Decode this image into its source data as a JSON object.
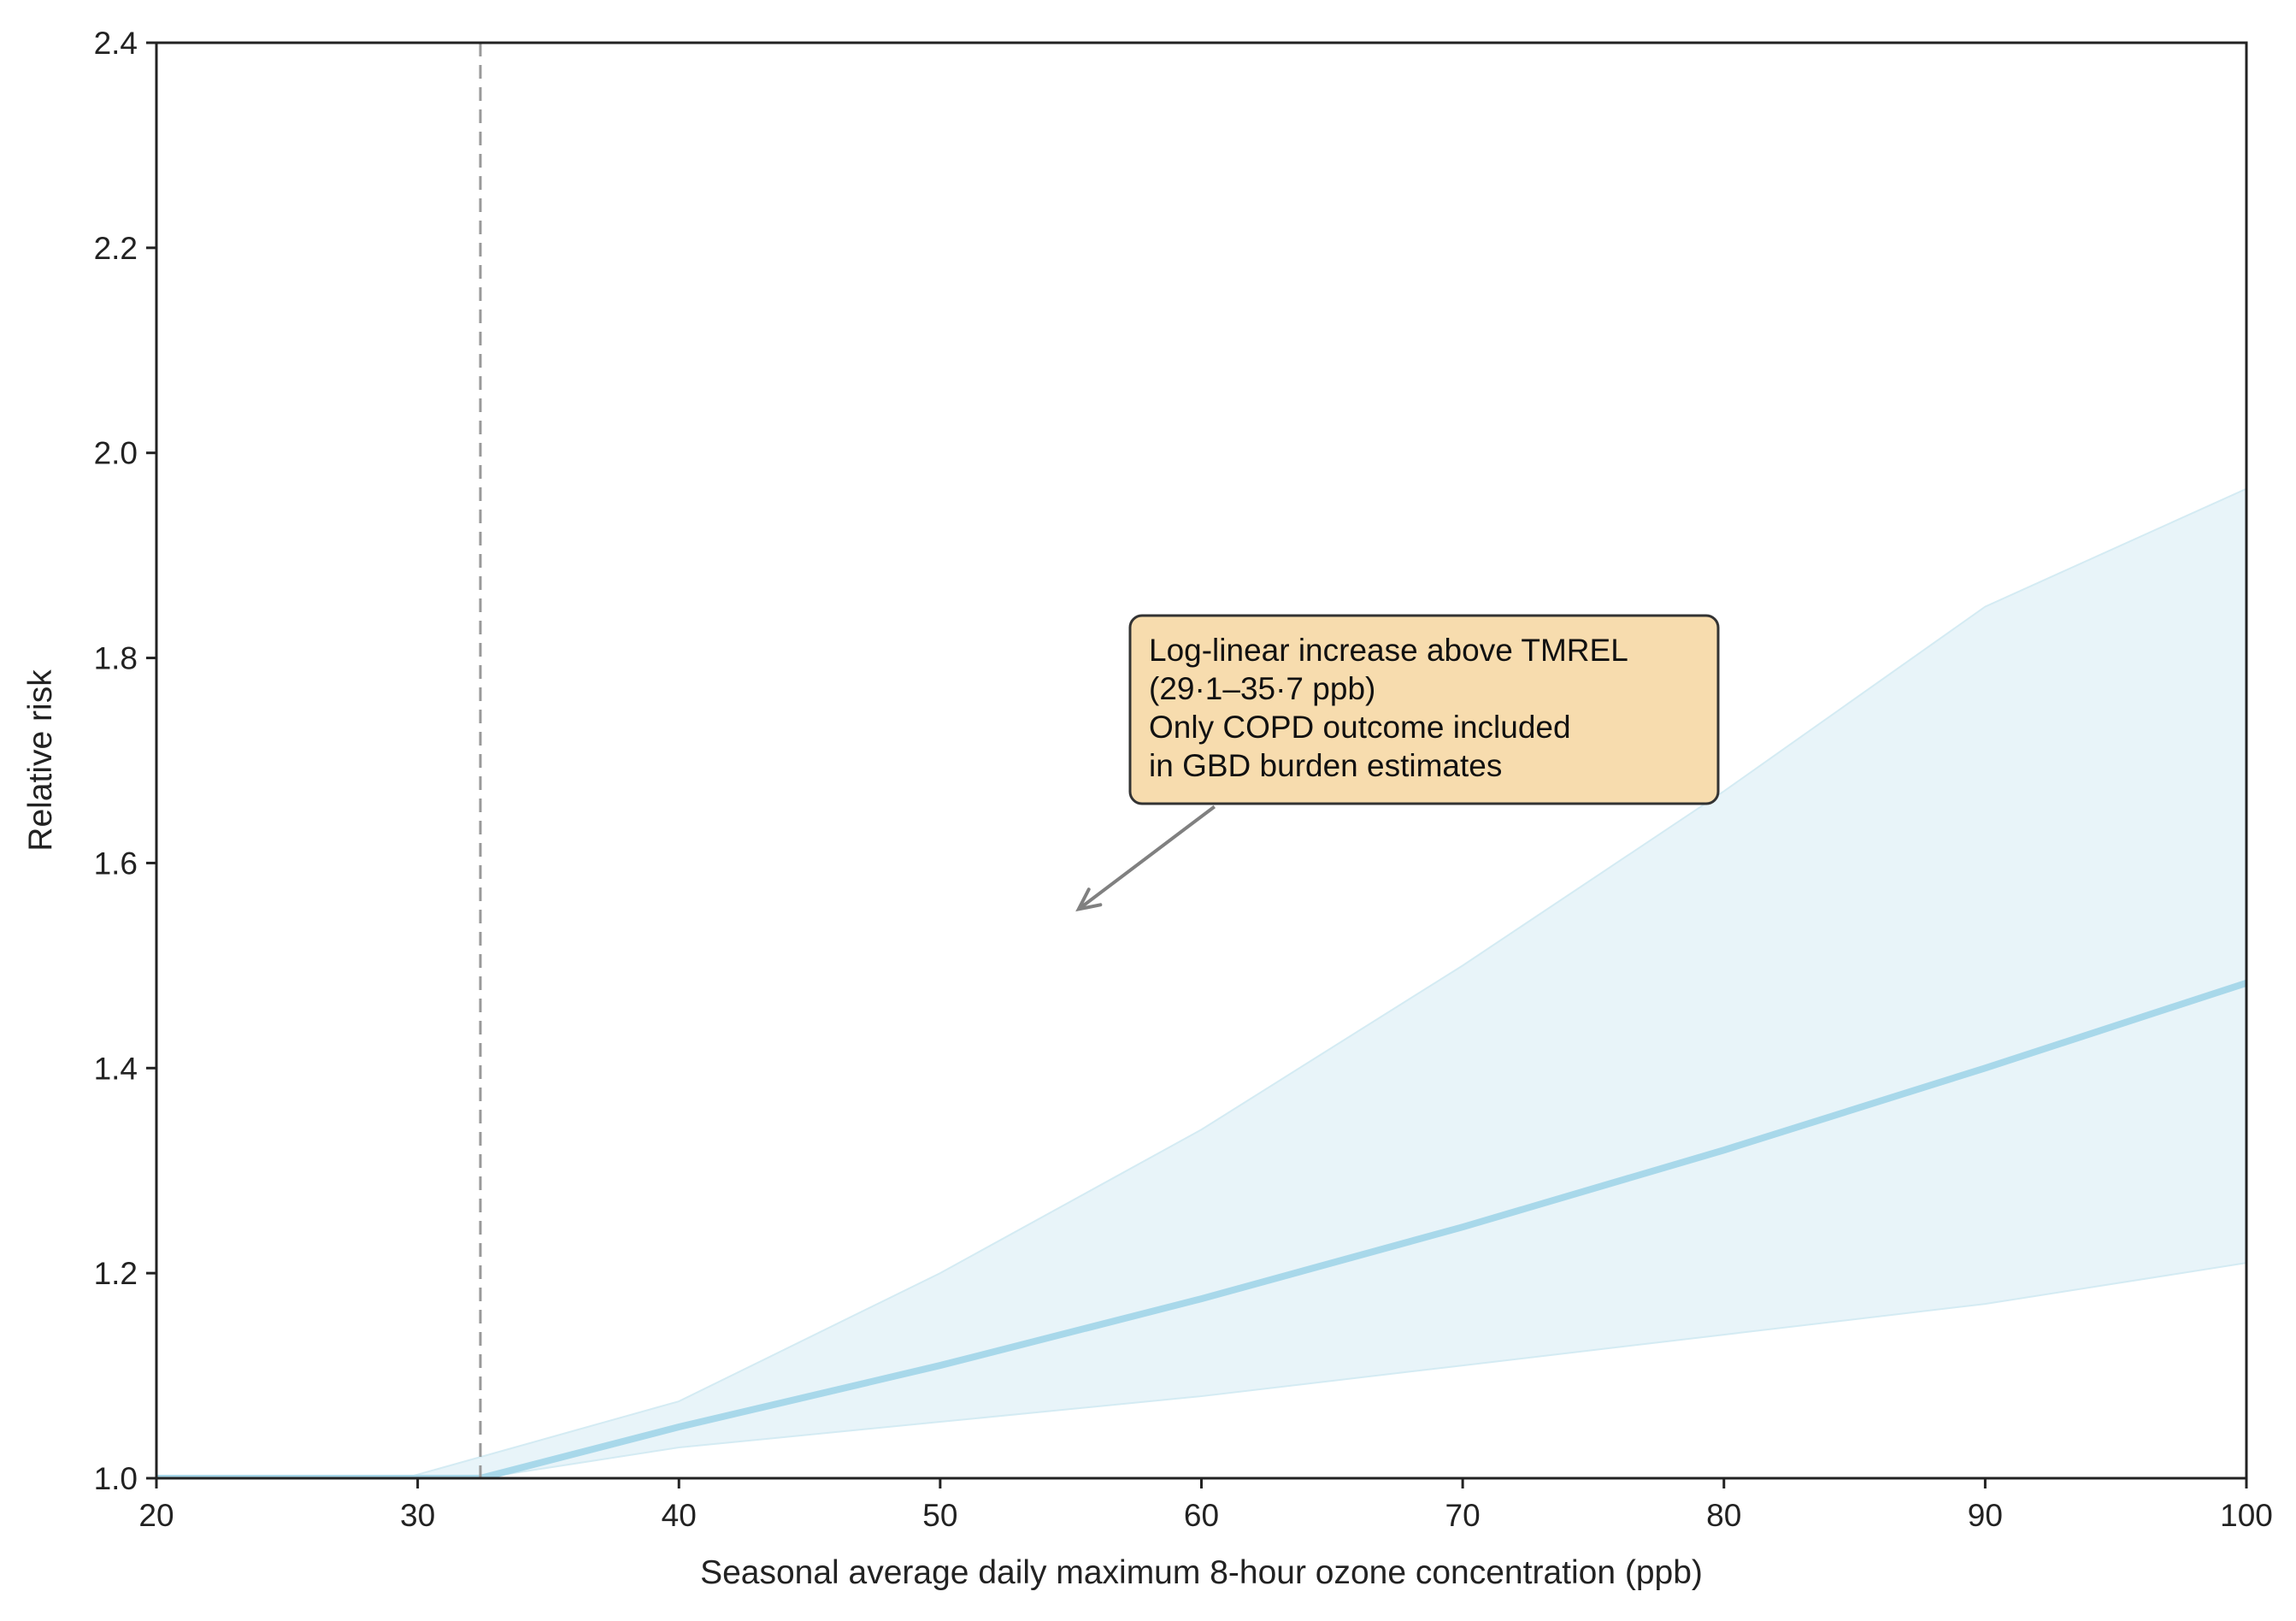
{
  "chart_data": {
    "type": "line",
    "title": "",
    "xlabel": "Seasonal average daily maximum 8-hour ozone concentration (ppb)",
    "ylabel": "Relative risk",
    "xlim": [
      20,
      100
    ],
    "ylim": [
      1.0,
      2.4
    ],
    "x_ticks": [
      20,
      30,
      40,
      50,
      60,
      70,
      80,
      90,
      100
    ],
    "y_ticks": [
      1.0,
      1.2,
      1.4,
      1.6,
      1.8,
      2.0,
      2.2,
      2.4
    ],
    "x_tick_labels": [
      "20",
      "30",
      "40",
      "50",
      "60",
      "70",
      "80",
      "90",
      "100"
    ],
    "y_tick_labels": [
      "1.0",
      "1.2",
      "1.4",
      "1.6",
      "1.8",
      "2.0",
      "2.2",
      "2.4"
    ],
    "grid": false,
    "legend": "none",
    "tmrel_line_x": 32.4,
    "series": [
      {
        "kind": "line",
        "color": "#a8d8ea",
        "x": [
          20,
          32.4,
          40,
          50,
          60,
          70,
          80,
          90,
          100
        ],
        "y": [
          1.0,
          1.0,
          1.05,
          1.11,
          1.175,
          1.245,
          1.32,
          1.4,
          1.483
        ]
      },
      {
        "kind": "band",
        "color": "#e6f3f8",
        "x": [
          20,
          29.5,
          40,
          50,
          60,
          70,
          80,
          90,
          100
        ],
        "lower": [
          1.0,
          1.0,
          1.0,
          1.0,
          1.0,
          1.0,
          1.0,
          1.0,
          1.0
        ],
        "upper": [
          1.0,
          1.0,
          1.075,
          1.2,
          1.34,
          1.5,
          1.67,
          1.85,
          1.965
        ]
      },
      {
        "kind": "band_lower_edge",
        "color": "#e6f3f8",
        "x": [
          32.4,
          40,
          50,
          60,
          70,
          80,
          90,
          100
        ],
        "y": [
          1.0,
          1.03,
          1.055,
          1.08,
          1.11,
          1.14,
          1.17,
          1.21
        ]
      }
    ],
    "annotation": {
      "lines": [
        "Log-linear increase above TMREL",
        "(29·1–35·7 ppb)",
        "Only COPD outcome included",
        "in GBD burden estimates"
      ],
      "box_fill": "#f7dcae",
      "box_border": "#333333",
      "arrow_color": "#808080",
      "arrow_from": [
        60.5,
        1.655
      ],
      "arrow_to": [
        55.3,
        1.555
      ]
    }
  }
}
